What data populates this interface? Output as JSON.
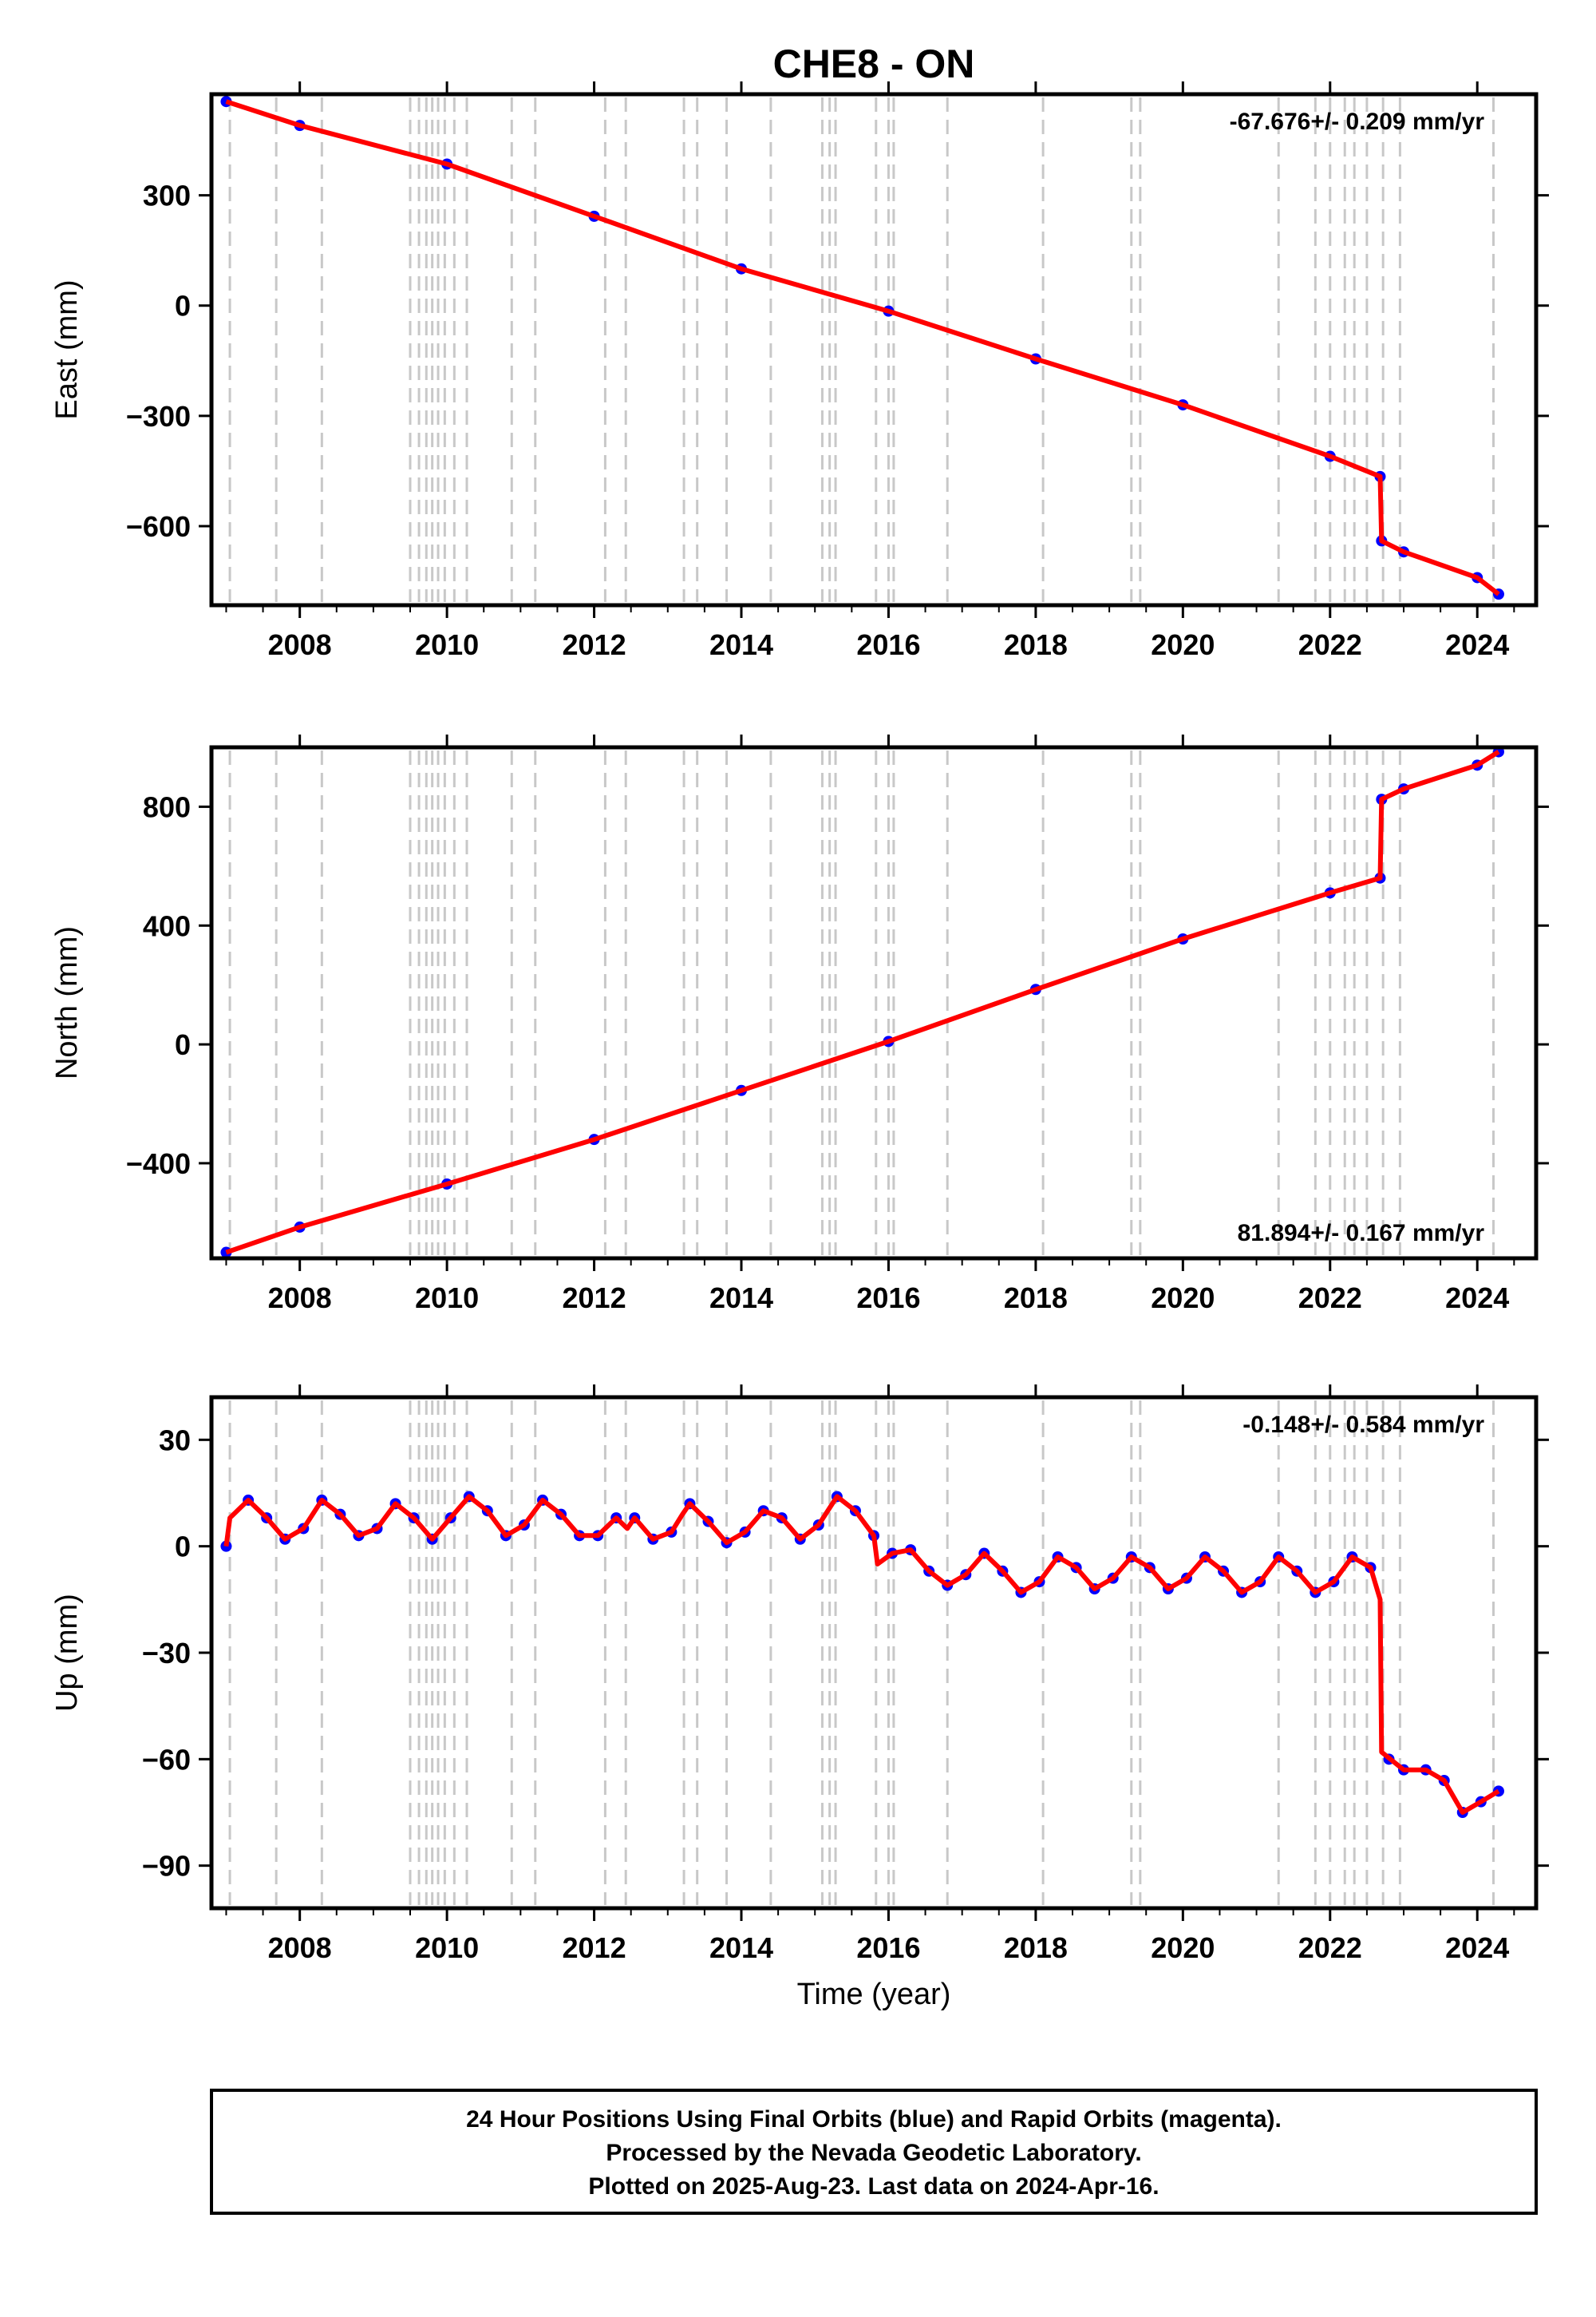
{
  "title": "CHE8 - ON",
  "footer": {
    "line1": "24 Hour Positions Using Final Orbits (blue) and Rapid Orbits (magenta).",
    "line2": "Processed by the Nevada Geodetic Laboratory.",
    "line3": "Plotted on 2025-Aug-23. Last data on 2024-Apr-16."
  },
  "colors": {
    "data_points": "#0000ff",
    "model_line": "#ff0000",
    "event_lines": "#c8c8c8",
    "frame": "#000000"
  },
  "chart_data": [
    {
      "type": "scatter",
      "name": "east",
      "ylabel": "East (mm)",
      "xlabel": "",
      "rate_label": "-67.676+/- 0.209 mm/yr",
      "rate_position": "top-right",
      "xlim": [
        2006.8,
        2024.8
      ],
      "ylim": [
        -815,
        575
      ],
      "xticks": [
        2008,
        2010,
        2012,
        2014,
        2016,
        2018,
        2020,
        2022,
        2024
      ],
      "xtick_labels": [
        "2008",
        "2010",
        "2012",
        "2014",
        "2016",
        "2018",
        "2020",
        "2022",
        "2024"
      ],
      "yticks": [
        -600,
        -300,
        0,
        300
      ],
      "ytick_labels": [
        "−600",
        "−300",
        "0",
        "300"
      ],
      "model": {
        "x": [
          2007.0,
          2008.0,
          2010.0,
          2012.0,
          2014.0,
          2016.0,
          2018.0,
          2020.0,
          2022.0,
          2022.68,
          2022.7,
          2023.0,
          2024.0,
          2024.29
        ],
        "y": [
          555,
          490,
          385,
          243,
          100,
          -15,
          -145,
          -270,
          -410,
          -465,
          -640,
          -670,
          -740,
          -785
        ]
      },
      "points": {
        "x": [
          2007.0,
          2008.0,
          2010.0,
          2012.0,
          2014.0,
          2016.0,
          2018.0,
          2020.0,
          2022.0,
          2022.68,
          2022.7,
          2023.0,
          2024.0,
          2024.29
        ],
        "y": [
          555,
          490,
          385,
          243,
          100,
          -15,
          -145,
          -270,
          -410,
          -465,
          -640,
          -670,
          -740,
          -785
        ]
      }
    },
    {
      "type": "scatter",
      "name": "north",
      "ylabel": "North (mm)",
      "xlabel": "",
      "rate_label": "81.894+/- 0.167 mm/yr",
      "rate_position": "bottom-right",
      "xlim": [
        2006.8,
        2024.8
      ],
      "ylim": [
        -720,
        1000
      ],
      "xticks": [
        2008,
        2010,
        2012,
        2014,
        2016,
        2018,
        2020,
        2022,
        2024
      ],
      "xtick_labels": [
        "2008",
        "2010",
        "2012",
        "2014",
        "2016",
        "2018",
        "2020",
        "2022",
        "2024"
      ],
      "yticks": [
        -400,
        0,
        400,
        800
      ],
      "ytick_labels": [
        "−400",
        "0",
        "400",
        "800"
      ],
      "model": {
        "x": [
          2007.0,
          2008.0,
          2010.0,
          2012.0,
          2014.0,
          2016.0,
          2018.0,
          2020.0,
          2022.0,
          2022.68,
          2022.7,
          2023.0,
          2024.0,
          2024.29
        ],
        "y": [
          -700,
          -615,
          -470,
          -320,
          -155,
          10,
          185,
          355,
          510,
          560,
          825,
          860,
          940,
          985
        ]
      },
      "points": {
        "x": [
          2007.0,
          2008.0,
          2010.0,
          2012.0,
          2014.0,
          2016.0,
          2018.0,
          2020.0,
          2022.0,
          2022.68,
          2022.7,
          2023.0,
          2024.0,
          2024.29
        ],
        "y": [
          -700,
          -615,
          -470,
          -320,
          -155,
          10,
          185,
          355,
          510,
          560,
          825,
          860,
          940,
          985
        ]
      }
    },
    {
      "type": "scatter",
      "name": "up",
      "ylabel": "Up (mm)",
      "xlabel": "Time (year)",
      "rate_label": "-0.148+/- 0.584 mm/yr",
      "rate_position": "top-right",
      "xlim": [
        2006.8,
        2024.8
      ],
      "ylim": [
        -102,
        42
      ],
      "xticks": [
        2008,
        2010,
        2012,
        2014,
        2016,
        2018,
        2020,
        2022,
        2024
      ],
      "xtick_labels": [
        "2008",
        "2010",
        "2012",
        "2014",
        "2016",
        "2018",
        "2020",
        "2022",
        "2024"
      ],
      "yticks": [
        -90,
        -60,
        -30,
        0,
        30
      ],
      "ytick_labels": [
        "−90",
        "−60",
        "−30",
        "0",
        "30"
      ],
      "model": {
        "x": [
          2007.0,
          2007.05,
          2007.3,
          2007.55,
          2007.8,
          2008.05,
          2008.3,
          2008.55,
          2008.8,
          2009.05,
          2009.3,
          2009.55,
          2009.8,
          2010.05,
          2010.3,
          2010.55,
          2010.8,
          2011.05,
          2011.3,
          2011.55,
          2011.8,
          2012.05,
          2012.3,
          2012.45,
          2012.55,
          2012.8,
          2013.05,
          2013.2,
          2013.3,
          2013.55,
          2013.8,
          2014.05,
          2014.3,
          2014.55,
          2014.8,
          2015.05,
          2015.3,
          2015.55,
          2015.8,
          2015.85,
          2016.05,
          2016.3,
          2016.55,
          2016.8,
          2017.05,
          2017.3,
          2017.55,
          2017.8,
          2018.05,
          2018.3,
          2018.55,
          2018.8,
          2019.05,
          2019.3,
          2019.55,
          2019.8,
          2020.05,
          2020.3,
          2020.55,
          2020.8,
          2021.05,
          2021.3,
          2021.55,
          2021.8,
          2022.05,
          2022.3,
          2022.55,
          2022.68,
          2022.7,
          2023.0,
          2023.3,
          2023.55,
          2023.8,
          2024.05,
          2024.29
        ],
        "y": [
          0,
          8,
          13,
          8,
          2,
          5,
          13,
          9,
          3,
          5,
          12,
          8,
          2,
          8,
          14,
          10,
          3,
          6,
          13,
          9,
          3,
          3,
          8,
          5,
          8,
          2,
          4,
          9,
          12,
          7,
          1,
          4,
          10,
          8,
          2,
          6,
          14,
          10,
          3,
          -5,
          -2,
          -1,
          -7,
          -11,
          -8,
          -2,
          -7,
          -13,
          -10,
          -3,
          -6,
          -12,
          -9,
          -3,
          -6,
          -12,
          -9,
          -3,
          -7,
          -13,
          -10,
          -3,
          -7,
          -13,
          -10,
          -3,
          -6,
          -15,
          -58,
          -63,
          -63,
          -66,
          -75,
          -72,
          -69
        ]
      },
      "points": {
        "x": [
          2007.0,
          2007.3,
          2007.55,
          2007.8,
          2008.05,
          2008.3,
          2008.55,
          2008.8,
          2009.05,
          2009.3,
          2009.55,
          2009.8,
          2010.05,
          2010.3,
          2010.55,
          2010.8,
          2011.05,
          2011.3,
          2011.55,
          2011.8,
          2012.05,
          2012.3,
          2012.55,
          2012.8,
          2013.05,
          2013.3,
          2013.55,
          2013.8,
          2014.05,
          2014.3,
          2014.55,
          2014.8,
          2015.05,
          2015.3,
          2015.55,
          2015.8,
          2016.05,
          2016.3,
          2016.55,
          2016.8,
          2017.05,
          2017.3,
          2017.55,
          2017.8,
          2018.05,
          2018.3,
          2018.55,
          2018.8,
          2019.05,
          2019.3,
          2019.55,
          2019.8,
          2020.05,
          2020.3,
          2020.55,
          2020.8,
          2021.05,
          2021.3,
          2021.55,
          2021.8,
          2022.05,
          2022.3,
          2022.55,
          2022.8,
          2023.0,
          2023.3,
          2023.55,
          2023.8,
          2024.05,
          2024.29
        ],
        "y": [
          0,
          13,
          8,
          2,
          5,
          13,
          9,
          3,
          5,
          12,
          8,
          2,
          8,
          14,
          10,
          3,
          6,
          13,
          9,
          3,
          3,
          8,
          8,
          2,
          4,
          12,
          7,
          1,
          4,
          10,
          8,
          2,
          6,
          14,
          10,
          3,
          -2,
          -1,
          -7,
          -11,
          -8,
          -2,
          -7,
          -13,
          -10,
          -3,
          -6,
          -12,
          -9,
          -3,
          -6,
          -12,
          -9,
          -3,
          -7,
          -13,
          -10,
          -3,
          -7,
          -13,
          -10,
          -3,
          -6,
          -60,
          -63,
          -63,
          -66,
          -75,
          -72,
          -69
        ]
      }
    }
  ],
  "event_lines_x": [
    2007.05,
    2007.68,
    2008.3,
    2009.5,
    2009.62,
    2009.72,
    2009.8,
    2009.88,
    2009.97,
    2010.1,
    2010.27,
    2010.88,
    2011.2,
    2012.15,
    2012.43,
    2013.22,
    2013.4,
    2013.8,
    2014.4,
    2015.1,
    2015.2,
    2015.28,
    2015.83,
    2016.0,
    2016.07,
    2016.8,
    2018.1,
    2019.3,
    2019.42,
    2021.3,
    2021.8,
    2022.0,
    2022.2,
    2022.33,
    2022.5,
    2022.72,
    2022.95,
    2024.22
  ]
}
